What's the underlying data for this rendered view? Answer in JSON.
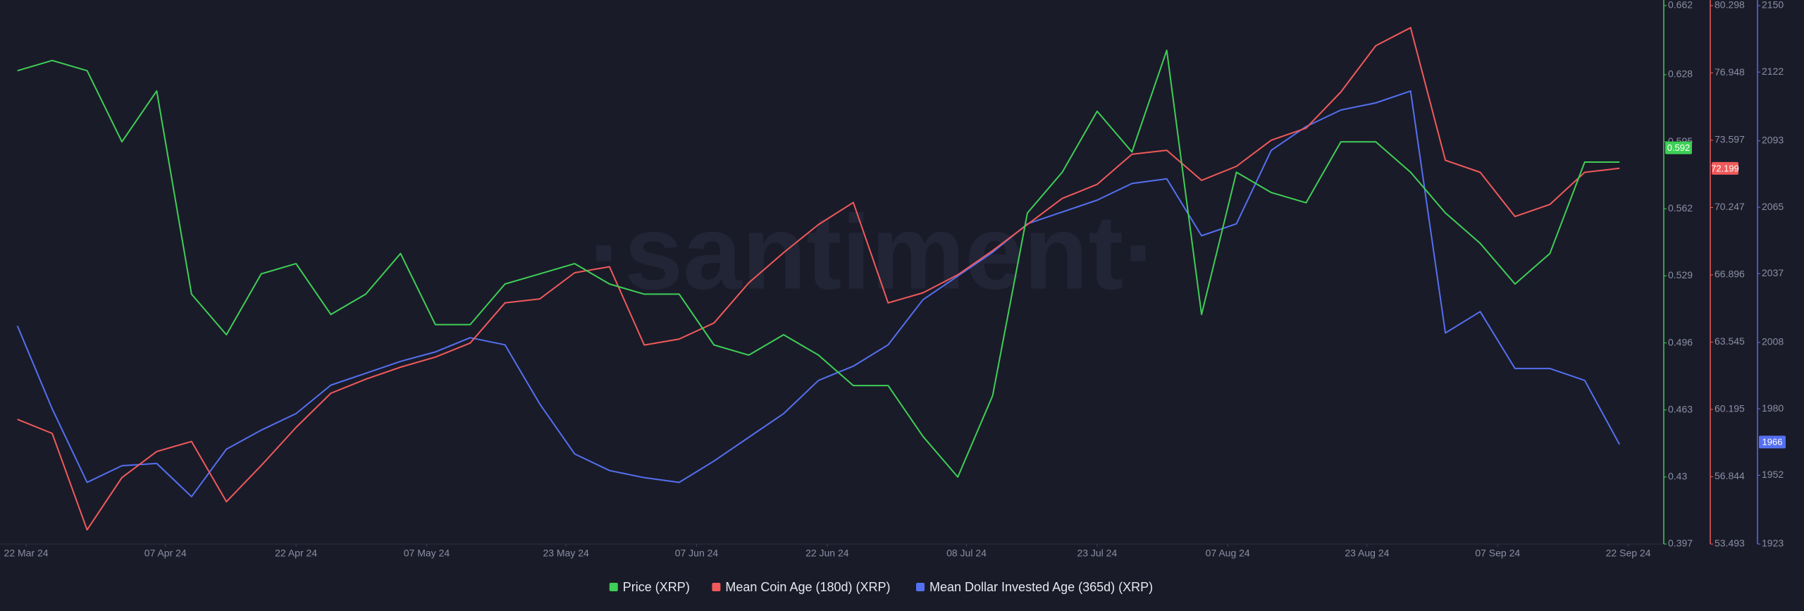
{
  "chart_data": {
    "type": "line",
    "watermark": "·santiment·",
    "x": [
      "2024-03-21",
      "2024-03-25",
      "2024-03-29",
      "2024-04-02",
      "2024-04-06",
      "2024-04-10",
      "2024-04-14",
      "2024-04-18",
      "2024-04-22",
      "2024-04-26",
      "2024-04-30",
      "2024-05-04",
      "2024-05-08",
      "2024-05-12",
      "2024-05-16",
      "2024-05-20",
      "2024-05-24",
      "2024-05-28",
      "2024-06-01",
      "2024-06-05",
      "2024-06-09",
      "2024-06-13",
      "2024-06-17",
      "2024-06-21",
      "2024-06-25",
      "2024-06-29",
      "2024-07-03",
      "2024-07-07",
      "2024-07-11",
      "2024-07-15",
      "2024-07-19",
      "2024-07-23",
      "2024-07-27",
      "2024-07-31",
      "2024-08-04",
      "2024-08-08",
      "2024-08-12",
      "2024-08-16",
      "2024-08-20",
      "2024-08-24",
      "2024-08-28",
      "2024-09-01",
      "2024-09-05",
      "2024-09-09",
      "2024-09-13",
      "2024-09-17",
      "2024-09-21"
    ],
    "xlim": [
      "2024-03-19",
      "2024-09-26"
    ],
    "xticks": [
      {
        "value": "2024-03-22",
        "label": "22 Mar 24"
      },
      {
        "value": "2024-04-07",
        "label": "07 Apr 24"
      },
      {
        "value": "2024-04-22",
        "label": "22 Apr 24"
      },
      {
        "value": "2024-05-07",
        "label": "07 May 24"
      },
      {
        "value": "2024-05-23",
        "label": "23 May 24"
      },
      {
        "value": "2024-06-07",
        "label": "07 Jun 24"
      },
      {
        "value": "2024-06-22",
        "label": "22 Jun 24"
      },
      {
        "value": "2024-07-08",
        "label": "08 Jul 24"
      },
      {
        "value": "2024-07-23",
        "label": "23 Jul 24"
      },
      {
        "value": "2024-08-07",
        "label": "07 Aug 24"
      },
      {
        "value": "2024-08-23",
        "label": "23 Aug 24"
      },
      {
        "value": "2024-09-07",
        "label": "07 Sep 24"
      },
      {
        "value": "2024-09-22",
        "label": "22 Sep 24"
      }
    ],
    "ylim": [
      0.397,
      0.662
    ],
    "yticks": [
      0.397,
      0.43,
      0.463,
      0.496,
      0.529,
      0.562,
      0.595,
      0.628,
      0.662
    ],
    "y2lim": [
      53.493,
      80.298
    ],
    "y2ticks": [
      53.493,
      56.844,
      60.195,
      63.545,
      66.896,
      70.247,
      73.597,
      76.948,
      80.298
    ],
    "y3lim": [
      1923,
      2150
    ],
    "y3ticks": [
      1923,
      1952,
      1980,
      2008,
      2037,
      2065,
      2093,
      2122,
      2150
    ],
    "series": [
      {
        "name": "Price (XRP)",
        "color": "#3ecf56",
        "axis": "y",
        "current_value": 0.592,
        "values": [
          0.63,
          0.635,
          0.63,
          0.595,
          0.62,
          0.52,
          0.5,
          0.53,
          0.535,
          0.51,
          0.52,
          0.54,
          0.505,
          0.505,
          0.525,
          0.53,
          0.535,
          0.525,
          0.52,
          0.52,
          0.495,
          0.49,
          0.5,
          0.49,
          0.475,
          0.475,
          0.45,
          0.43,
          0.47,
          0.56,
          0.58,
          0.61,
          0.59,
          0.64,
          0.51,
          0.58,
          0.57,
          0.565,
          0.595,
          0.595,
          0.58,
          0.56,
          0.545,
          0.525,
          0.54,
          0.585,
          0.585
        ]
      },
      {
        "name": "Mean Coin Age (180d) (XRP)",
        "color": "#f05a5a",
        "axis": "y2",
        "current_value": 72.199,
        "values": [
          59.7,
          59,
          54.2,
          56.8,
          58.1,
          58.6,
          55.6,
          57.4,
          59.3,
          61,
          61.7,
          62.3,
          62.8,
          63.5,
          65.5,
          65.7,
          67,
          67.3,
          63.4,
          63.7,
          64.5,
          66.5,
          68,
          69.4,
          70.5,
          65.5,
          66,
          66.9,
          68.1,
          69.4,
          70.7,
          71.4,
          72.9,
          73.1,
          71.6,
          72.3,
          73.6,
          74.2,
          76,
          78.3,
          79.2,
          72.6,
          72,
          69.8,
          70.4,
          72,
          72.2
        ]
      },
      {
        "name": "Mean Dollar Invested Age (365d) (XRP)",
        "color": "#5470f0",
        "axis": "y3",
        "current_value": 1966,
        "values": [
          2015,
          1980,
          1949,
          1956,
          1957,
          1943,
          1963,
          1971,
          1978,
          1990,
          1995,
          2000,
          2004,
          2010,
          2007,
          1982,
          1961,
          1954,
          1951,
          1949,
          1958,
          1968,
          1978,
          1992,
          1998,
          2007,
          2026,
          2036,
          2046,
          2058,
          2063,
          2068,
          2075,
          2077,
          2053,
          2058,
          2089,
          2099,
          2106,
          2109,
          2114,
          2012,
          2021,
          1997,
          1997,
          1992,
          1965
        ]
      }
    ]
  }
}
